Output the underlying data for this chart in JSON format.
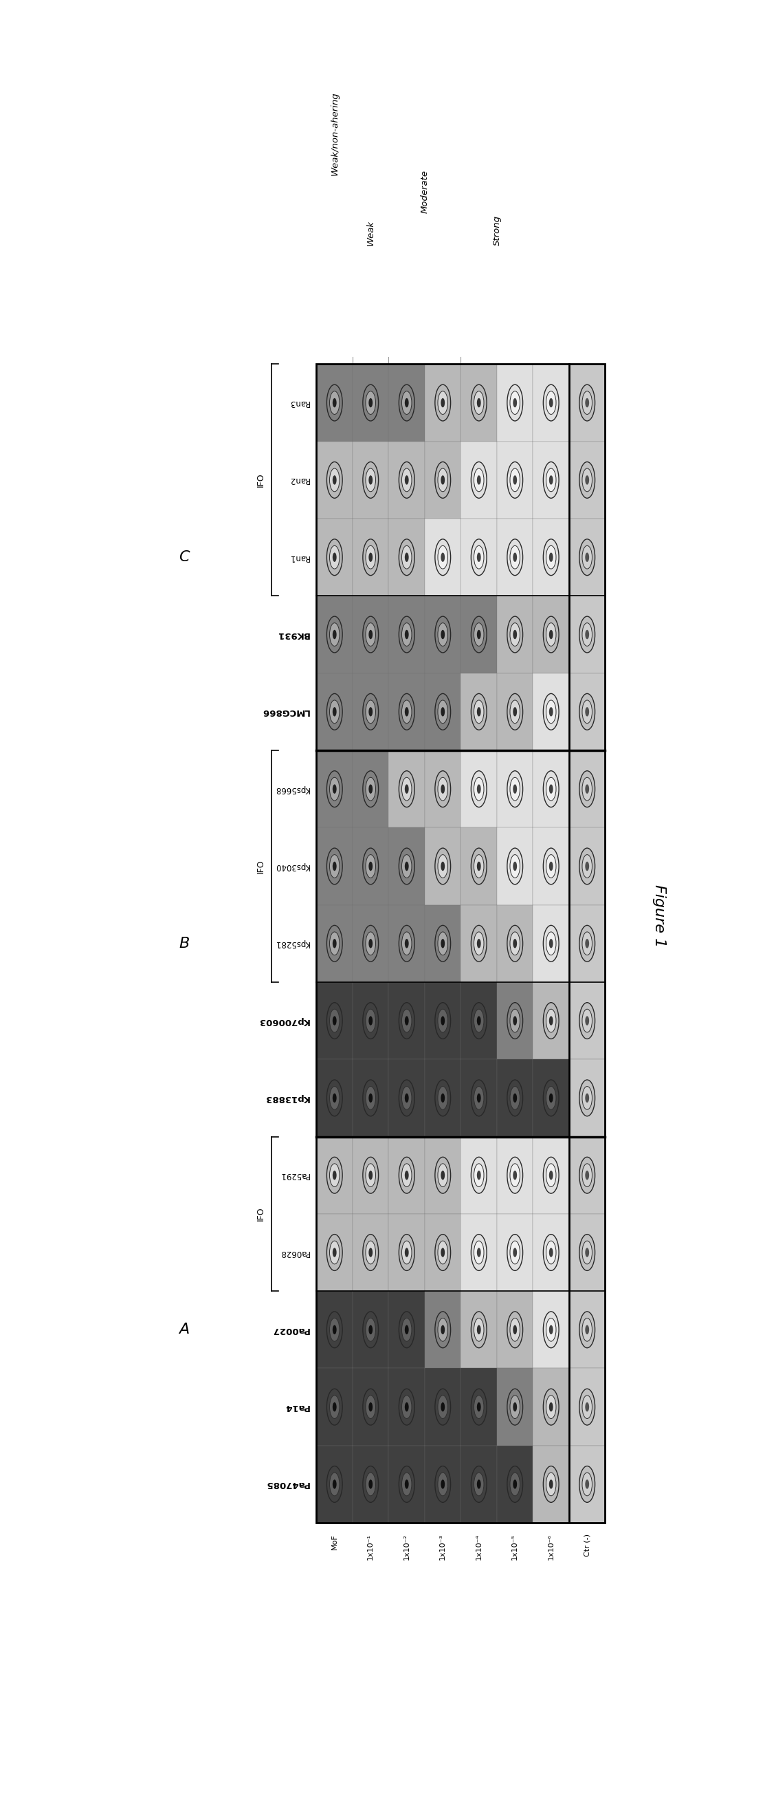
{
  "figure_title": "Figure 1",
  "top_labels": [
    "Weak/non-ahering",
    "Weak",
    "Moderate",
    "Strong"
  ],
  "x_labels": [
    "MoF",
    "1x10⁻¹",
    "1x10⁻²",
    "1x10⁻³",
    "1x10⁻⁴",
    "1x10⁻⁵",
    "1x10⁻⁶",
    "Ctr (-)"
  ],
  "groups": [
    {
      "group_label": "C",
      "subgroup_label": "IFO",
      "ifo_rows": [
        0,
        1,
        2
      ],
      "rows": [
        "Ran3",
        "Ran2",
        "Ran1",
        "BK931",
        "LMCG866"
      ],
      "rows_bold": [
        false,
        false,
        false,
        true,
        true
      ],
      "shading": [
        [
          2,
          2,
          2,
          1,
          1,
          0,
          0,
          1
        ],
        [
          1,
          1,
          1,
          1,
          0,
          0,
          0,
          1
        ],
        [
          1,
          1,
          1,
          0,
          0,
          0,
          0,
          1
        ],
        [
          2,
          2,
          2,
          2,
          2,
          1,
          1,
          1
        ],
        [
          2,
          2,
          2,
          2,
          1,
          1,
          0,
          1
        ]
      ]
    },
    {
      "group_label": "B",
      "subgroup_label": "IFO",
      "ifo_rows": [
        0,
        1,
        2
      ],
      "rows": [
        "Kps5668",
        "Kps3040",
        "Kps5281",
        "Kp700603",
        "Kp13883"
      ],
      "rows_bold": [
        false,
        false,
        false,
        true,
        true
      ],
      "shading": [
        [
          2,
          2,
          1,
          1,
          0,
          0,
          0,
          1
        ],
        [
          2,
          2,
          2,
          1,
          1,
          0,
          0,
          1
        ],
        [
          2,
          2,
          2,
          2,
          1,
          1,
          0,
          1
        ],
        [
          3,
          3,
          3,
          3,
          3,
          2,
          1,
          1
        ],
        [
          3,
          3,
          3,
          3,
          3,
          3,
          3,
          1
        ]
      ]
    },
    {
      "group_label": "A",
      "subgroup_label": "IFO",
      "ifo_rows": [
        0,
        1
      ],
      "rows": [
        "Pa5291",
        "Pa0628",
        "Pa0027",
        "Pa14",
        "Pa47085"
      ],
      "rows_bold": [
        false,
        false,
        true,
        true,
        true
      ],
      "shading": [
        [
          1,
          1,
          1,
          1,
          0,
          0,
          0,
          1
        ],
        [
          1,
          1,
          1,
          1,
          0,
          0,
          0,
          1
        ],
        [
          3,
          3,
          3,
          2,
          1,
          1,
          0,
          1
        ],
        [
          3,
          3,
          3,
          3,
          3,
          2,
          1,
          1
        ],
        [
          3,
          3,
          3,
          3,
          3,
          3,
          1,
          1
        ]
      ]
    }
  ],
  "shading_colors": [
    "#e0e0e0",
    "#b8b8b8",
    "#808080",
    "#404040"
  ],
  "last_col_bg": "#c8c8c8",
  "last_col_well_color": "#b0b0b0",
  "bg_color": "#ffffff"
}
